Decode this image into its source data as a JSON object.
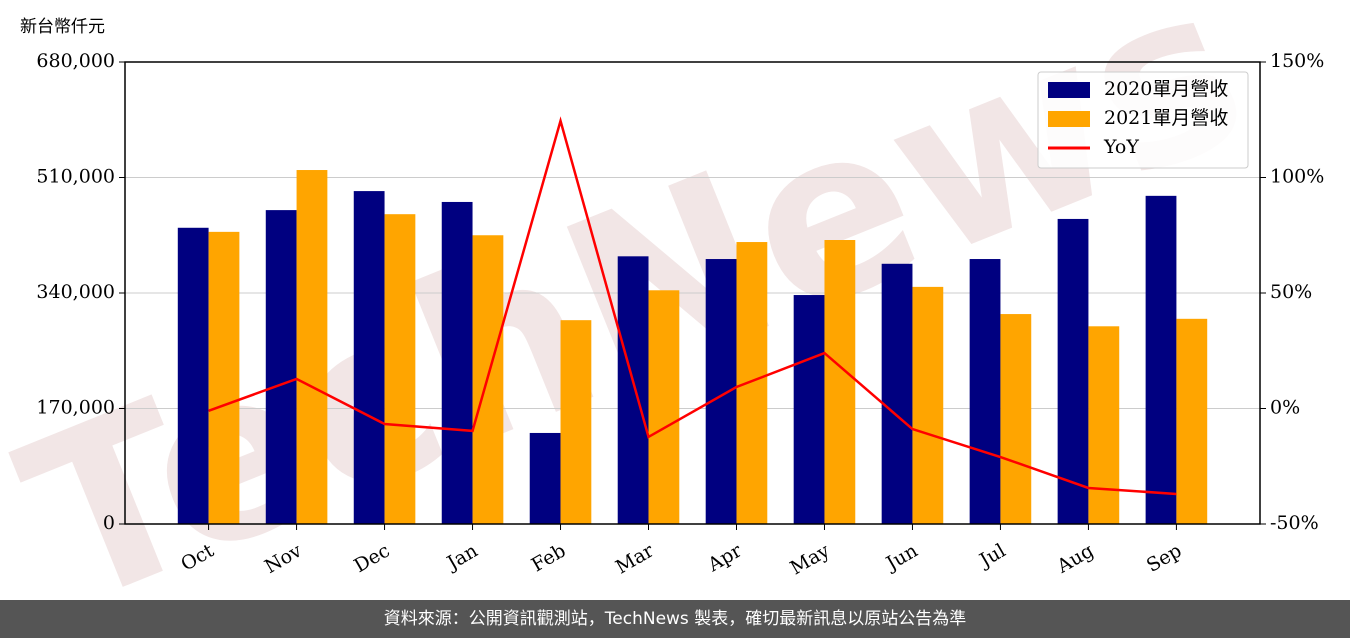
{
  "chart_data": {
    "type": "bar_line",
    "y_label": "新台幣仟元",
    "watermark": "TechNews",
    "footer": "資料來源：公開資訊觀測站，TechNews 製表，確切最新訊息以原站公告為準",
    "categories": [
      "Oct",
      "Nov",
      "Dec",
      "Jan",
      "Feb",
      "Mar",
      "Apr",
      "May",
      "Jun",
      "Jul",
      "Aug",
      "Sep"
    ],
    "series": [
      {
        "name": "2020單月營收",
        "color": "#000080",
        "kind": "bar",
        "values": [
          436000,
          462000,
          490000,
          474000,
          134000,
          394000,
          390000,
          337000,
          383000,
          390000,
          449000,
          483000
        ]
      },
      {
        "name": "2021單月營收",
        "color": "#ffa500",
        "kind": "bar",
        "values": [
          430000,
          521000,
          456000,
          425000,
          300000,
          344000,
          415000,
          418000,
          349000,
          309000,
          291000,
          302000
        ]
      },
      {
        "name": "YoY",
        "color": "#ff0000",
        "kind": "line",
        "axis": "y2",
        "values": [
          -1,
          12.8,
          -6.7,
          -9.7,
          124.5,
          -12.3,
          9.3,
          24,
          -8.9,
          -21,
          -34.4,
          -37
        ]
      }
    ],
    "ylim": [
      0,
      680000
    ],
    "yticks": [
      0,
      {
        "value": 170000,
        "label": "170,000"
      },
      {
        "value": 340000,
        "label": "340,000"
      },
      {
        "value": 510000,
        "label": "510,000"
      },
      {
        "value": 680000,
        "label": "680,000"
      }
    ],
    "y2lim": [
      -50,
      150
    ],
    "y2ticks": [
      {
        "value": -50,
        "label": "-50%"
      },
      {
        "value": 0,
        "label": "0%"
      },
      {
        "value": 50,
        "label": "50%"
      },
      {
        "value": 100,
        "label": "100%"
      },
      {
        "value": 150,
        "label": "150%"
      }
    ],
    "grid": true,
    "legend": "upper right"
  }
}
